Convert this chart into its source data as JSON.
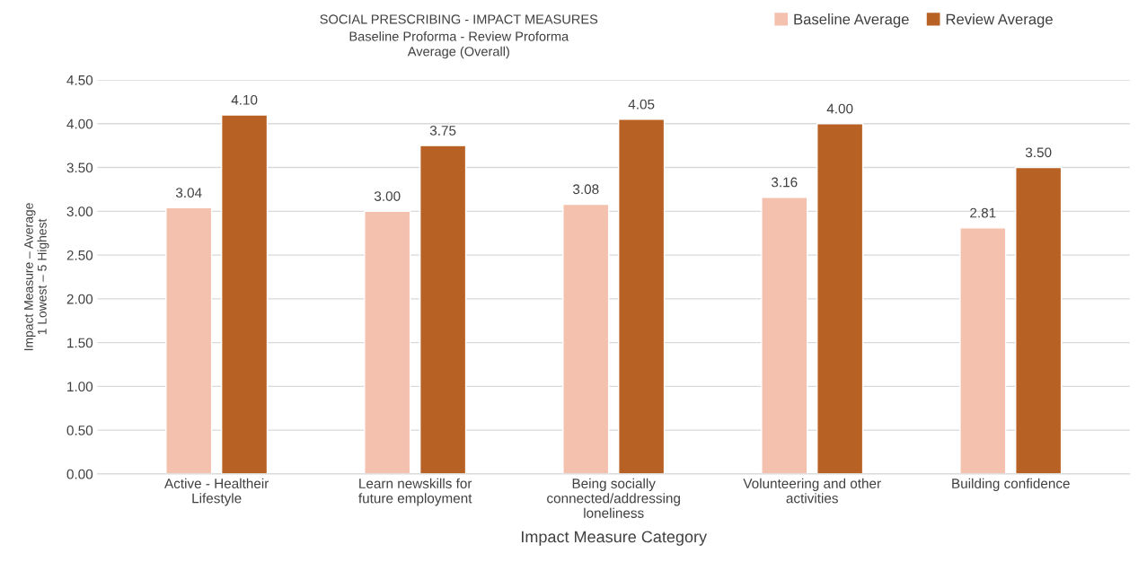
{
  "chart_data": {
    "type": "bar",
    "title": "SOCIAL PRESCRIBING - IMPACT MEASURES",
    "subtitle": "Baseline Proforma - Review Proforma\nAverage (Overall)",
    "xlabel": "Impact Measure Category",
    "ylabel": "Impact Measure – Average\n1 Lowest – 5 Highest",
    "categories": [
      "Active - Healtheir Lifestyle",
      "Learn newskills for future employment",
      "Being socially connected/addressing loneliness",
      "Volunteering and other activities",
      "Building confidence"
    ],
    "series": [
      {
        "name": "Baseline Average",
        "color": "#f4c1ae",
        "values": [
          3.04,
          3.0,
          3.08,
          3.16,
          2.81
        ],
        "value_labels": [
          "3.04",
          "3.00",
          "3.08",
          "3.16",
          "2.81"
        ]
      },
      {
        "name": "Review Average",
        "color": "#b86124",
        "values": [
          4.1,
          3.75,
          4.05,
          4.0,
          3.5
        ],
        "value_labels": [
          "4.10",
          "3.75",
          "4.05",
          "4.00",
          "3.50"
        ]
      }
    ],
    "ylim": [
      0,
      4.5
    ],
    "yticks": [
      {
        "value": 0,
        "label": "0.00"
      },
      {
        "value": 0.5,
        "label": "0.50"
      },
      {
        "value": 1,
        "label": "1.00"
      },
      {
        "value": 1.5,
        "label": "1.50"
      },
      {
        "value": 2,
        "label": "2.00"
      },
      {
        "value": 2.5,
        "label": "2.50"
      },
      {
        "value": 3,
        "label": "3.00"
      },
      {
        "value": 3.5,
        "label": "3.50"
      },
      {
        "value": 4,
        "label": "4.00"
      },
      {
        "value": 4.5,
        "label": "4.50"
      }
    ],
    "grid": "y",
    "legend": "top right"
  }
}
